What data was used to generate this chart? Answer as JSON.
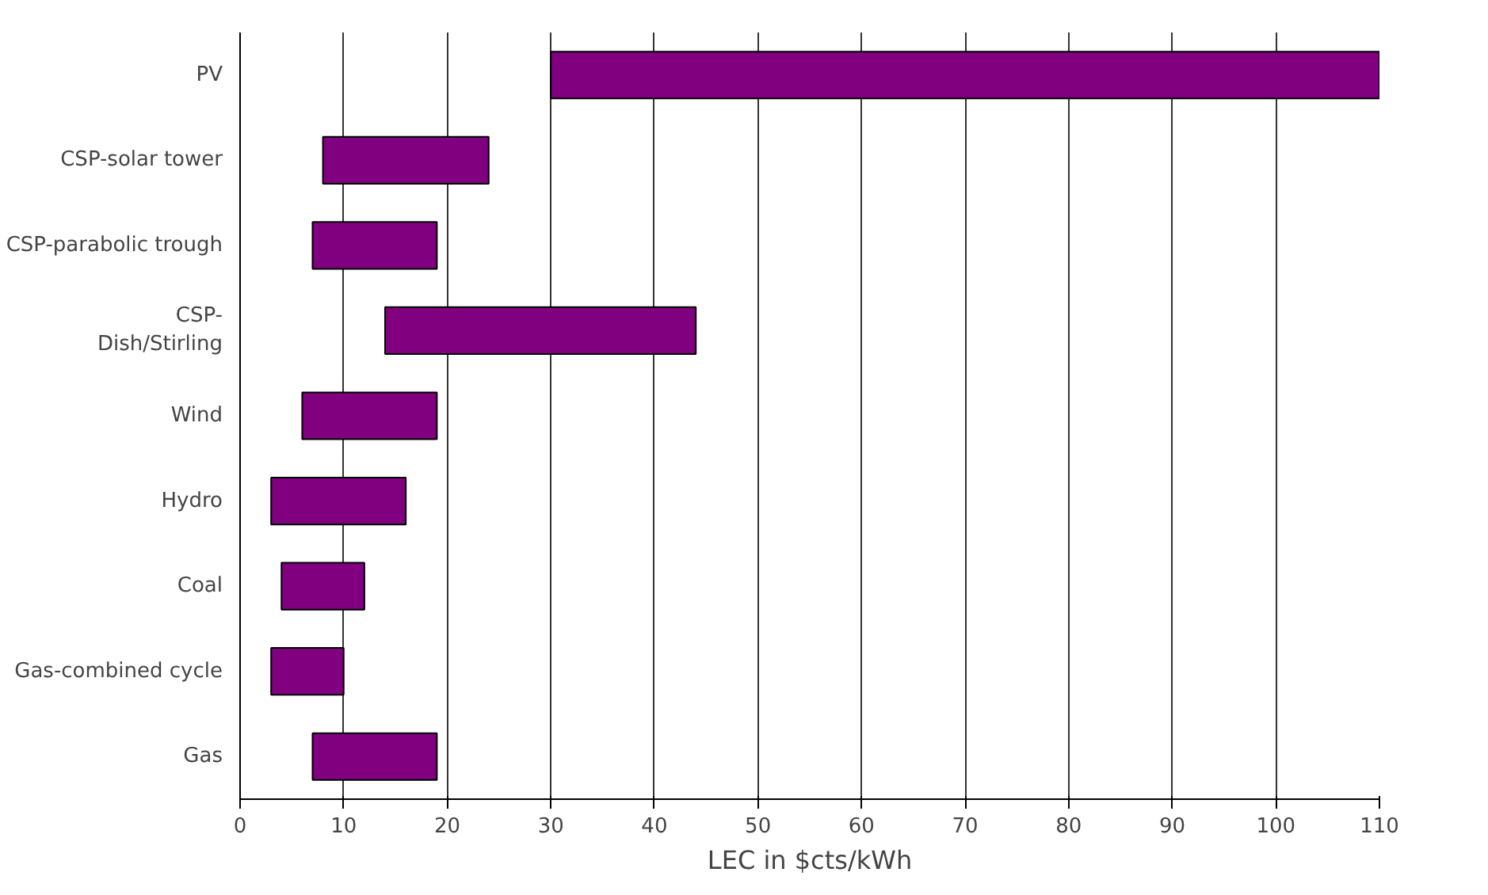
{
  "chart_data": {
    "type": "bar",
    "orientation": "horizontal",
    "xlabel": "LEC in $cts/kWh",
    "categories": [
      "PV",
      "CSP-solar tower",
      "CSP-parabolic trough",
      "CSP-\nDish/Stirling",
      "Wind",
      "Hydro",
      "Coal",
      "Gas-combined cycle",
      "Gas"
    ],
    "base": [
      30,
      8,
      7,
      14,
      6,
      3,
      4,
      3,
      7
    ],
    "values": [
      80,
      16,
      12,
      30,
      13,
      13,
      8,
      7,
      12
    ],
    "color": "#800080",
    "xlim": [
      0,
      110
    ],
    "xticks": [
      0,
      10,
      20,
      30,
      40,
      50,
      60,
      70,
      80,
      90,
      100,
      110
    ],
    "grid": "x"
  }
}
